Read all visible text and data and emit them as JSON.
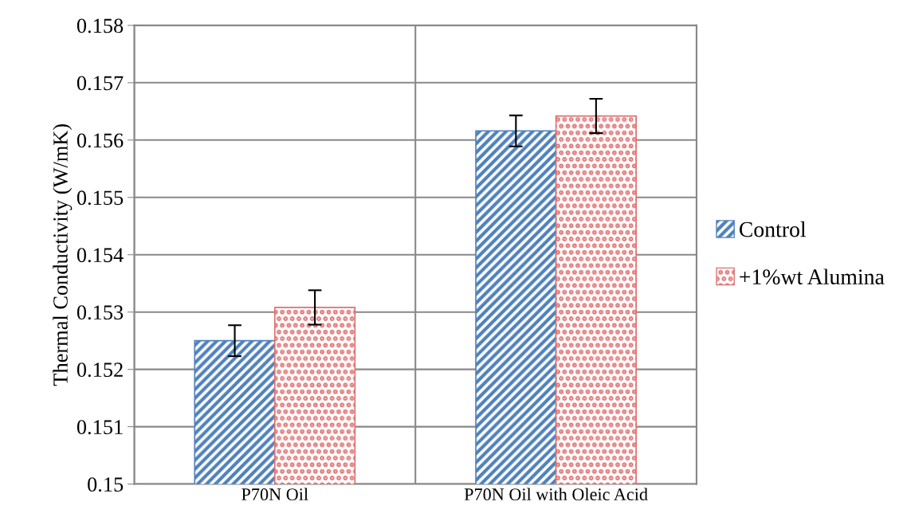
{
  "chart_data": {
    "type": "bar",
    "ylabel": "Thermal Conductivity (W/mK)",
    "categories": [
      "P70N Oil",
      "P70N Oil with Oleic Acid"
    ],
    "series": [
      {
        "name": "Control",
        "color": "#4f81bd",
        "values": [
          0.1525,
          0.15616
        ],
        "errors": [
          0.00027,
          0.00027
        ]
      },
      {
        "name": "+1%wt Alumina",
        "color": "#e07070",
        "values": [
          0.15308,
          0.15642
        ],
        "errors": [
          0.0003,
          0.0003
        ]
      }
    ],
    "ylim": [
      0.15,
      0.158
    ],
    "yticks": [
      {
        "value": 0.15,
        "label": "0.15"
      },
      0.151,
      0.152,
      0.153,
      0.154,
      0.155,
      0.156,
      0.157,
      0.158
    ],
    "grid": true,
    "legend": "right"
  }
}
